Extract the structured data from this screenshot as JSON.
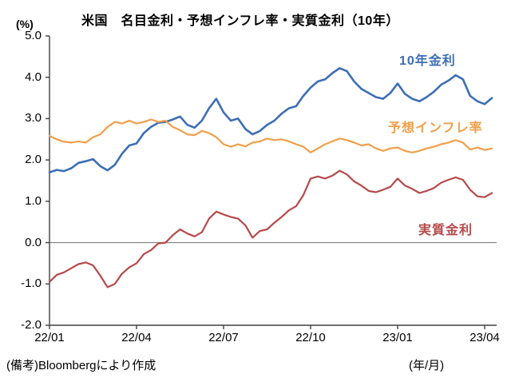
{
  "header": {
    "title": "米国　名目金利・予想インフレ率・実質金利（10年）",
    "unit_label": "(%)"
  },
  "axes": {
    "y_tick_labels": [
      "5.0",
      "4.0",
      "3.0",
      "2.0",
      "1.0",
      "0.0",
      "-1.0",
      "-2.0"
    ],
    "x_tick_labels": [
      "22/01",
      "22/04",
      "22/07",
      "22/10",
      "23/01",
      "23/04"
    ]
  },
  "footer": {
    "note": "(備考)Bloombergにより作成",
    "x_unit": "(年/月)"
  },
  "colors": {
    "axis": "#404040",
    "zero_line": "#808080",
    "blue": "#3d6eb4",
    "orange": "#ef9f49",
    "red": "#b5494a"
  },
  "chart_data": {
    "type": "line",
    "title": "米国　名目金利・予想インフレ率・実質金利（10年）",
    "ylabel": "(%)",
    "xlabel": "(年/月)",
    "ylim": [
      -2.0,
      5.0
    ],
    "y_ticks": [
      5.0,
      4.0,
      3.0,
      2.0,
      1.0,
      0.0,
      -1.0,
      -2.0
    ],
    "x_tick_positions": [
      0,
      3,
      6,
      9,
      12,
      15
    ],
    "x_tick_labels": [
      "22/01",
      "22/04",
      "22/07",
      "22/10",
      "23/01",
      "23/04"
    ],
    "x_axis_meaning": "months since 2022/01",
    "grid": "zero-line-only",
    "legend_position": "inline-annotations",
    "x": [
      0,
      0.25,
      0.5,
      0.75,
      1,
      1.25,
      1.5,
      1.75,
      2,
      2.25,
      2.5,
      2.75,
      3,
      3.25,
      3.5,
      3.75,
      4,
      4.25,
      4.5,
      4.75,
      5,
      5.25,
      5.5,
      5.75,
      6,
      6.25,
      6.5,
      6.75,
      7,
      7.25,
      7.5,
      7.75,
      8,
      8.25,
      8.5,
      8.75,
      9,
      9.25,
      9.5,
      9.75,
      10,
      10.25,
      10.5,
      10.75,
      11,
      11.25,
      11.5,
      11.75,
      12,
      12.25,
      12.5,
      12.75,
      13,
      13.25,
      13.5,
      13.75,
      14,
      14.25,
      14.5,
      14.75,
      15,
      15.25
    ],
    "series": [
      {
        "id": "10y-yield",
        "name": "10年金利",
        "color": "#3d6eb4",
        "width": 2.6,
        "values": [
          1.7,
          1.76,
          1.73,
          1.8,
          1.93,
          1.97,
          2.02,
          1.85,
          1.75,
          1.88,
          2.15,
          2.35,
          2.4,
          2.65,
          2.8,
          2.9,
          2.92,
          2.98,
          3.05,
          2.85,
          2.78,
          2.95,
          3.25,
          3.48,
          3.15,
          2.95,
          3.0,
          2.75,
          2.62,
          2.7,
          2.85,
          2.95,
          3.12,
          3.25,
          3.3,
          3.55,
          3.75,
          3.9,
          3.95,
          4.1,
          4.22,
          4.15,
          3.9,
          3.72,
          3.62,
          3.52,
          3.48,
          3.62,
          3.85,
          3.6,
          3.48,
          3.42,
          3.52,
          3.65,
          3.82,
          3.92,
          4.05,
          3.95,
          3.55,
          3.42,
          3.35,
          3.5
        ]
      },
      {
        "id": "expected-inflation",
        "name": "予想インフレ率",
        "color": "#ef9f49",
        "width": 2.2,
        "values": [
          2.58,
          2.5,
          2.44,
          2.42,
          2.45,
          2.42,
          2.55,
          2.62,
          2.8,
          2.92,
          2.88,
          2.95,
          2.88,
          2.92,
          2.98,
          2.92,
          2.95,
          2.8,
          2.72,
          2.62,
          2.6,
          2.7,
          2.65,
          2.55,
          2.38,
          2.32,
          2.38,
          2.33,
          2.42,
          2.45,
          2.52,
          2.48,
          2.5,
          2.45,
          2.38,
          2.32,
          2.18,
          2.28,
          2.38,
          2.45,
          2.52,
          2.48,
          2.42,
          2.35,
          2.38,
          2.28,
          2.22,
          2.28,
          2.3,
          2.22,
          2.18,
          2.22,
          2.28,
          2.32,
          2.38,
          2.42,
          2.48,
          2.42,
          2.25,
          2.3,
          2.24,
          2.28
        ]
      },
      {
        "id": "real-yield",
        "name": "実質金利",
        "color": "#b5494a",
        "width": 2.2,
        "values": [
          -0.95,
          -0.78,
          -0.72,
          -0.62,
          -0.52,
          -0.48,
          -0.55,
          -0.8,
          -1.08,
          -1.0,
          -0.75,
          -0.6,
          -0.5,
          -0.28,
          -0.18,
          -0.02,
          0.0,
          0.18,
          0.32,
          0.22,
          0.15,
          0.25,
          0.58,
          0.75,
          0.68,
          0.62,
          0.58,
          0.42,
          0.12,
          0.28,
          0.32,
          0.48,
          0.62,
          0.78,
          0.88,
          1.15,
          1.55,
          1.6,
          1.55,
          1.62,
          1.74,
          1.65,
          1.48,
          1.38,
          1.25,
          1.22,
          1.28,
          1.35,
          1.55,
          1.38,
          1.3,
          1.2,
          1.25,
          1.32,
          1.45,
          1.52,
          1.58,
          1.52,
          1.28,
          1.12,
          1.1,
          1.2
        ]
      }
    ]
  }
}
